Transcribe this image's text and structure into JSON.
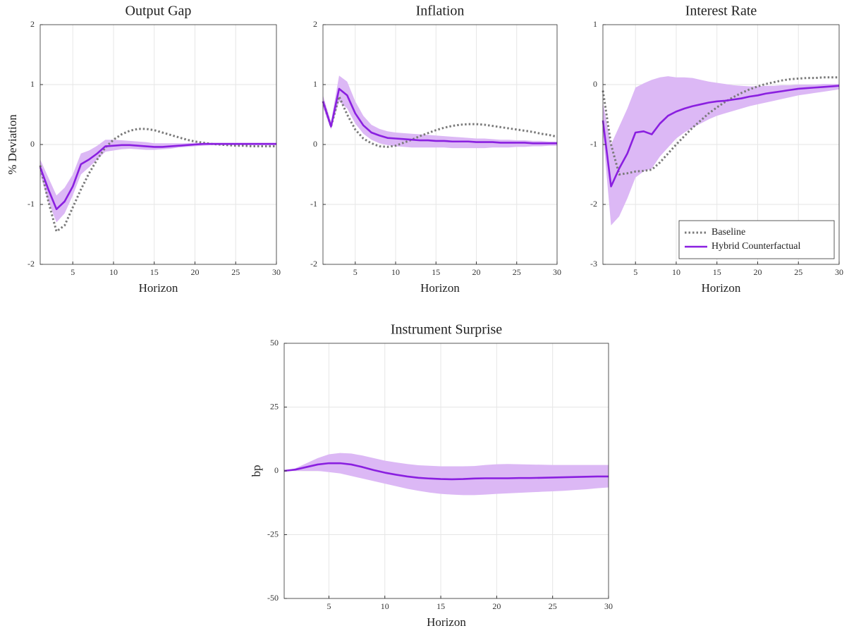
{
  "chart_data": [
    {
      "type": "line",
      "title": "Output Gap",
      "xlabel": "Horizon",
      "ylabel": "% Deviation",
      "x": [
        1,
        2,
        3,
        4,
        5,
        6,
        7,
        8,
        9,
        10,
        11,
        12,
        13,
        14,
        15,
        16,
        17,
        18,
        19,
        20,
        21,
        22,
        23,
        24,
        25,
        26,
        27,
        28,
        29,
        30
      ],
      "xlim": [
        1,
        30
      ],
      "xticks": [
        5,
        10,
        15,
        20,
        25,
        30
      ],
      "ylim": [
        -2,
        2
      ],
      "yticks": [
        -2,
        -1,
        0,
        1,
        2
      ],
      "grid": true,
      "band": {
        "color": "#dcb8f5",
        "lower": [
          -0.5,
          -0.95,
          -1.3,
          -1.15,
          -0.85,
          -0.5,
          -0.38,
          -0.25,
          -0.12,
          -0.1,
          -0.08,
          -0.07,
          -0.08,
          -0.09,
          -0.09,
          -0.08,
          -0.07,
          -0.05,
          -0.04,
          -0.03,
          -0.02,
          -0.01,
          -0.01,
          -0.01,
          -0.01,
          -0.01,
          -0.01,
          -0.01,
          -0.01,
          -0.01
        ],
        "upper": [
          -0.25,
          -0.55,
          -0.85,
          -0.72,
          -0.5,
          -0.15,
          -0.1,
          -0.02,
          0.08,
          0.08,
          0.07,
          0.06,
          0.05,
          0.04,
          0.02,
          0.02,
          0.02,
          0.02,
          0.02,
          0.03,
          0.03,
          0.03,
          0.03,
          0.03,
          0.03,
          0.03,
          0.03,
          0.03,
          0.03,
          0.03
        ]
      },
      "series": [
        {
          "color": "#7a7a7a",
          "linestyle": "dotted",
          "values": [
            -0.35,
            -0.95,
            -1.45,
            -1.35,
            -1.05,
            -0.75,
            -0.48,
            -0.25,
            -0.05,
            0.08,
            0.17,
            0.23,
            0.26,
            0.26,
            0.24,
            0.2,
            0.16,
            0.12,
            0.08,
            0.05,
            0.03,
            0.01,
            0,
            -0.01,
            -0.02,
            -0.02,
            -0.03,
            -0.03,
            -0.03,
            -0.03
          ]
        },
        {
          "color": "#8a1fe0",
          "linestyle": "solid",
          "values": [
            -0.38,
            -0.75,
            -1.08,
            -0.95,
            -0.7,
            -0.33,
            -0.25,
            -0.15,
            -0.03,
            -0.02,
            -0.01,
            -0.01,
            -0.02,
            -0.03,
            -0.04,
            -0.04,
            -0.03,
            -0.02,
            -0.01,
            0,
            0.01,
            0.01,
            0.01,
            0.01,
            0.01,
            0.01,
            0.01,
            0.01,
            0.01,
            0.01
          ]
        }
      ]
    },
    {
      "type": "line",
      "title": "Inflation",
      "xlabel": "Horizon",
      "x": [
        1,
        2,
        3,
        4,
        5,
        6,
        7,
        8,
        9,
        10,
        11,
        12,
        13,
        14,
        15,
        16,
        17,
        18,
        19,
        20,
        21,
        22,
        23,
        24,
        25,
        26,
        27,
        28,
        29,
        30
      ],
      "xlim": [
        1,
        30
      ],
      "xticks": [
        5,
        10,
        15,
        20,
        25,
        30
      ],
      "ylim": [
        -2,
        2
      ],
      "yticks": [
        -2,
        -1,
        0,
        1,
        2
      ],
      "grid": true,
      "band": {
        "color": "#dcb8f5",
        "lower": [
          0.62,
          0.25,
          0.72,
          0.6,
          0.35,
          0.18,
          0.08,
          0.02,
          -0.01,
          -0.03,
          -0.04,
          -0.05,
          -0.05,
          -0.05,
          -0.05,
          -0.05,
          -0.06,
          -0.06,
          -0.06,
          -0.06,
          -0.06,
          -0.05,
          -0.05,
          -0.05,
          -0.04,
          -0.04,
          -0.03,
          -0.03,
          -0.02,
          -0.02
        ],
        "upper": [
          0.82,
          0.38,
          1.15,
          1.05,
          0.72,
          0.48,
          0.33,
          0.26,
          0.22,
          0.2,
          0.19,
          0.18,
          0.17,
          0.16,
          0.15,
          0.14,
          0.13,
          0.12,
          0.11,
          0.1,
          0.1,
          0.09,
          0.08,
          0.08,
          0.07,
          0.07,
          0.06,
          0.06,
          0.05,
          0.05
        ]
      },
      "series": [
        {
          "color": "#7a7a7a",
          "linestyle": "dotted",
          "values": [
            0.72,
            0.3,
            0.8,
            0.5,
            0.25,
            0.1,
            0.02,
            -0.03,
            -0.04,
            -0.02,
            0.03,
            0.08,
            0.14,
            0.19,
            0.24,
            0.28,
            0.31,
            0.33,
            0.34,
            0.34,
            0.33,
            0.31,
            0.29,
            0.27,
            0.25,
            0.23,
            0.21,
            0.18,
            0.16,
            0.13
          ]
        },
        {
          "color": "#8a1fe0",
          "linestyle": "solid",
          "values": [
            0.72,
            0.3,
            0.93,
            0.82,
            0.52,
            0.32,
            0.2,
            0.15,
            0.11,
            0.1,
            0.09,
            0.08,
            0.07,
            0.07,
            0.06,
            0.06,
            0.05,
            0.05,
            0.05,
            0.04,
            0.04,
            0.04,
            0.03,
            0.03,
            0.03,
            0.03,
            0.02,
            0.02,
            0.02,
            0.02
          ]
        }
      ]
    },
    {
      "type": "line",
      "title": "Interest Rate",
      "xlabel": "Horizon",
      "legend": "lower right",
      "x": [
        1,
        2,
        3,
        4,
        5,
        6,
        7,
        8,
        9,
        10,
        11,
        12,
        13,
        14,
        15,
        16,
        17,
        18,
        19,
        20,
        21,
        22,
        23,
        24,
        25,
        26,
        27,
        28,
        29,
        30
      ],
      "xlim": [
        1,
        30
      ],
      "xticks": [
        5,
        10,
        15,
        20,
        25,
        30
      ],
      "ylim": [
        -3,
        1
      ],
      "yticks": [
        -3,
        -2,
        -1,
        0,
        1
      ],
      "grid": true,
      "band": {
        "color": "#dcb8f5",
        "lower": [
          -0.8,
          -2.35,
          -2.2,
          -1.9,
          -1.55,
          -1.45,
          -1.4,
          -1.2,
          -1.05,
          -0.9,
          -0.8,
          -0.72,
          -0.65,
          -0.58,
          -0.52,
          -0.48,
          -0.44,
          -0.4,
          -0.36,
          -0.33,
          -0.3,
          -0.27,
          -0.24,
          -0.21,
          -0.18,
          -0.16,
          -0.14,
          -0.12,
          -0.1,
          -0.08
        ],
        "upper": [
          -0.3,
          -1.0,
          -0.7,
          -0.4,
          -0.05,
          0.02,
          0.08,
          0.12,
          0.14,
          0.12,
          0.12,
          0.11,
          0.08,
          0.05,
          0.03,
          0.01,
          -0.01,
          -0.02,
          -0.03,
          -0.03,
          -0.02,
          -0.02,
          -0.01,
          -0.01,
          0,
          0,
          0,
          0.01,
          0.01,
          0.01
        ]
      },
      "series": [
        {
          "name": "Baseline",
          "color": "#7a7a7a",
          "linestyle": "dotted",
          "values": [
            -0.1,
            -1.0,
            -1.5,
            -1.48,
            -1.45,
            -1.44,
            -1.42,
            -1.3,
            -1.15,
            -1.0,
            -0.86,
            -0.72,
            -0.6,
            -0.48,
            -0.38,
            -0.29,
            -0.21,
            -0.14,
            -0.08,
            -0.03,
            0.01,
            0.04,
            0.07,
            0.09,
            0.1,
            0.11,
            0.11,
            0.12,
            0.12,
            0.12
          ]
        },
        {
          "name": "Hybrid Counterfactual",
          "color": "#8a1fe0",
          "linestyle": "solid",
          "values": [
            -0.6,
            -1.7,
            -1.4,
            -1.15,
            -0.8,
            -0.78,
            -0.83,
            -0.65,
            -0.52,
            -0.45,
            -0.4,
            -0.36,
            -0.33,
            -0.3,
            -0.28,
            -0.27,
            -0.25,
            -0.23,
            -0.2,
            -0.18,
            -0.15,
            -0.13,
            -0.11,
            -0.09,
            -0.07,
            -0.06,
            -0.05,
            -0.04,
            -0.03,
            -0.02
          ]
        }
      ]
    },
    {
      "type": "line",
      "title": "Instrument Surprise",
      "xlabel": "Horizon",
      "ylabel": "bp",
      "x": [
        1,
        2,
        3,
        4,
        5,
        6,
        7,
        8,
        9,
        10,
        11,
        12,
        13,
        14,
        15,
        16,
        17,
        18,
        19,
        20,
        21,
        22,
        23,
        24,
        25,
        26,
        27,
        28,
        29,
        30
      ],
      "xlim": [
        1,
        30
      ],
      "xticks": [
        5,
        10,
        15,
        20,
        25,
        30
      ],
      "ylim": [
        -50,
        50
      ],
      "yticks": [
        -50,
        -25,
        0,
        25,
        50
      ],
      "grid": true,
      "band": {
        "color": "#dcb8f5",
        "lower": [
          0,
          0,
          0,
          0,
          -0.5,
          -1,
          -2,
          -3,
          -4,
          -5,
          -6,
          -7,
          -7.8,
          -8.5,
          -9,
          -9.3,
          -9.5,
          -9.5,
          -9.3,
          -9,
          -8.8,
          -8.6,
          -8.4,
          -8.2,
          -8,
          -7.8,
          -7.5,
          -7.2,
          -6.8,
          -6.5
        ],
        "upper": [
          0,
          1,
          3,
          5,
          6.5,
          7,
          6.8,
          6,
          5,
          4,
          3.3,
          2.7,
          2.2,
          2,
          1.8,
          1.8,
          1.8,
          1.9,
          2.3,
          2.6,
          2.7,
          2.6,
          2.5,
          2.4,
          2.3,
          2.3,
          2.3,
          2.3,
          2.3,
          2.3
        ]
      },
      "series": [
        {
          "color": "#8a1fe0",
          "linestyle": "solid",
          "values": [
            0,
            0.5,
            1.5,
            2.5,
            3,
            3,
            2.5,
            1.5,
            0.3,
            -0.7,
            -1.5,
            -2.2,
            -2.7,
            -3,
            -3.2,
            -3.3,
            -3.2,
            -3,
            -2.9,
            -2.9,
            -2.9,
            -2.8,
            -2.8,
            -2.7,
            -2.6,
            -2.5,
            -2.4,
            -2.3,
            -2.2,
            -2.2
          ]
        }
      ]
    }
  ]
}
